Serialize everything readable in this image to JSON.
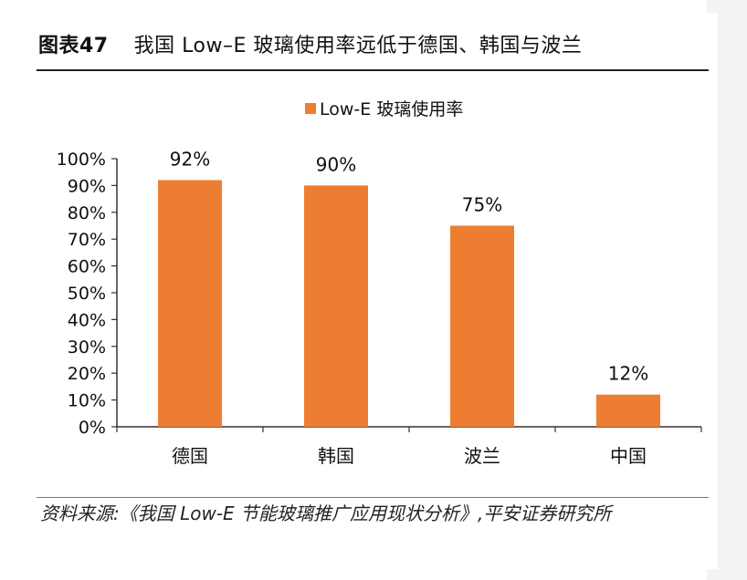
{
  "figure": {
    "number": "图表47",
    "title": "我国 Low–E 玻璃使用率远低于德国、韩国与波兰"
  },
  "source": "资料来源:《我国 Low-E 节能玻璃推广应用现状分析》,平安证券研究所",
  "chart_data": {
    "type": "bar",
    "categories": [
      "德国",
      "韩国",
      "波兰",
      "中国"
    ],
    "series": [
      {
        "name": "Low-E 玻璃使用率",
        "values": [
          92,
          90,
          75,
          12
        ],
        "labels": [
          "92%",
          "90%",
          "75%",
          "12%"
        ],
        "color": "#ED7D31"
      }
    ],
    "y_ticks": [
      "0%",
      "10%",
      "20%",
      "30%",
      "40%",
      "50%",
      "60%",
      "70%",
      "80%",
      "90%",
      "100%"
    ],
    "ylim": [
      0,
      100
    ],
    "legend_position": "top-center",
    "grid": false
  }
}
